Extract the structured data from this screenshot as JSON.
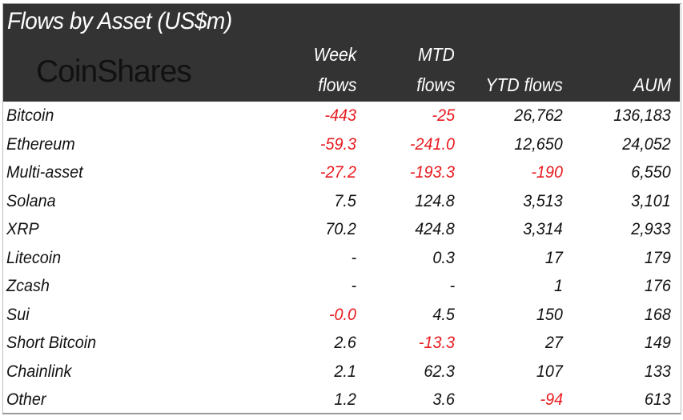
{
  "title": "Flows by Asset (US$m)",
  "logo": "CoinShares",
  "colors": {
    "header_bg": "#333333",
    "negative": "#e8191e",
    "text": "#111111"
  },
  "chart_data": {
    "type": "table",
    "title": "Flows by Asset (US$m)",
    "columns": [
      {
        "line1": "Week",
        "line2": "flows"
      },
      {
        "line1": "MTD",
        "line2": "flows"
      },
      {
        "line1": "",
        "line2": "YTD flows"
      },
      {
        "line1": "",
        "line2": "AUM"
      }
    ],
    "rows": [
      {
        "asset": "Bitcoin",
        "values": [
          "-443",
          "-25",
          "26,762",
          "136,183"
        ]
      },
      {
        "asset": "Ethereum",
        "values": [
          "-59.3",
          "-241.0",
          "12,650",
          "24,052"
        ]
      },
      {
        "asset": "Multi-asset",
        "values": [
          "-27.2",
          "-193.3",
          "-190",
          "6,550"
        ]
      },
      {
        "asset": "Solana",
        "values": [
          "7.5",
          "124.8",
          "3,513",
          "3,101"
        ]
      },
      {
        "asset": "XRP",
        "values": [
          "70.2",
          "424.8",
          "3,314",
          "2,933"
        ]
      },
      {
        "asset": "Litecoin",
        "values": [
          "-",
          "0.3",
          "17",
          "179"
        ]
      },
      {
        "asset": "Zcash",
        "values": [
          "-",
          "-",
          "1",
          "176"
        ]
      },
      {
        "asset": "Sui",
        "values": [
          "-0.0",
          "4.5",
          "150",
          "168"
        ]
      },
      {
        "asset": "Short Bitcoin",
        "values": [
          "2.6",
          "-13.3",
          "27",
          "149"
        ]
      },
      {
        "asset": "Chainlink",
        "values": [
          "2.1",
          "62.3",
          "107",
          "133"
        ]
      },
      {
        "asset": "Other",
        "values": [
          "1.2",
          "3.6",
          "-94",
          "613"
        ]
      }
    ]
  }
}
